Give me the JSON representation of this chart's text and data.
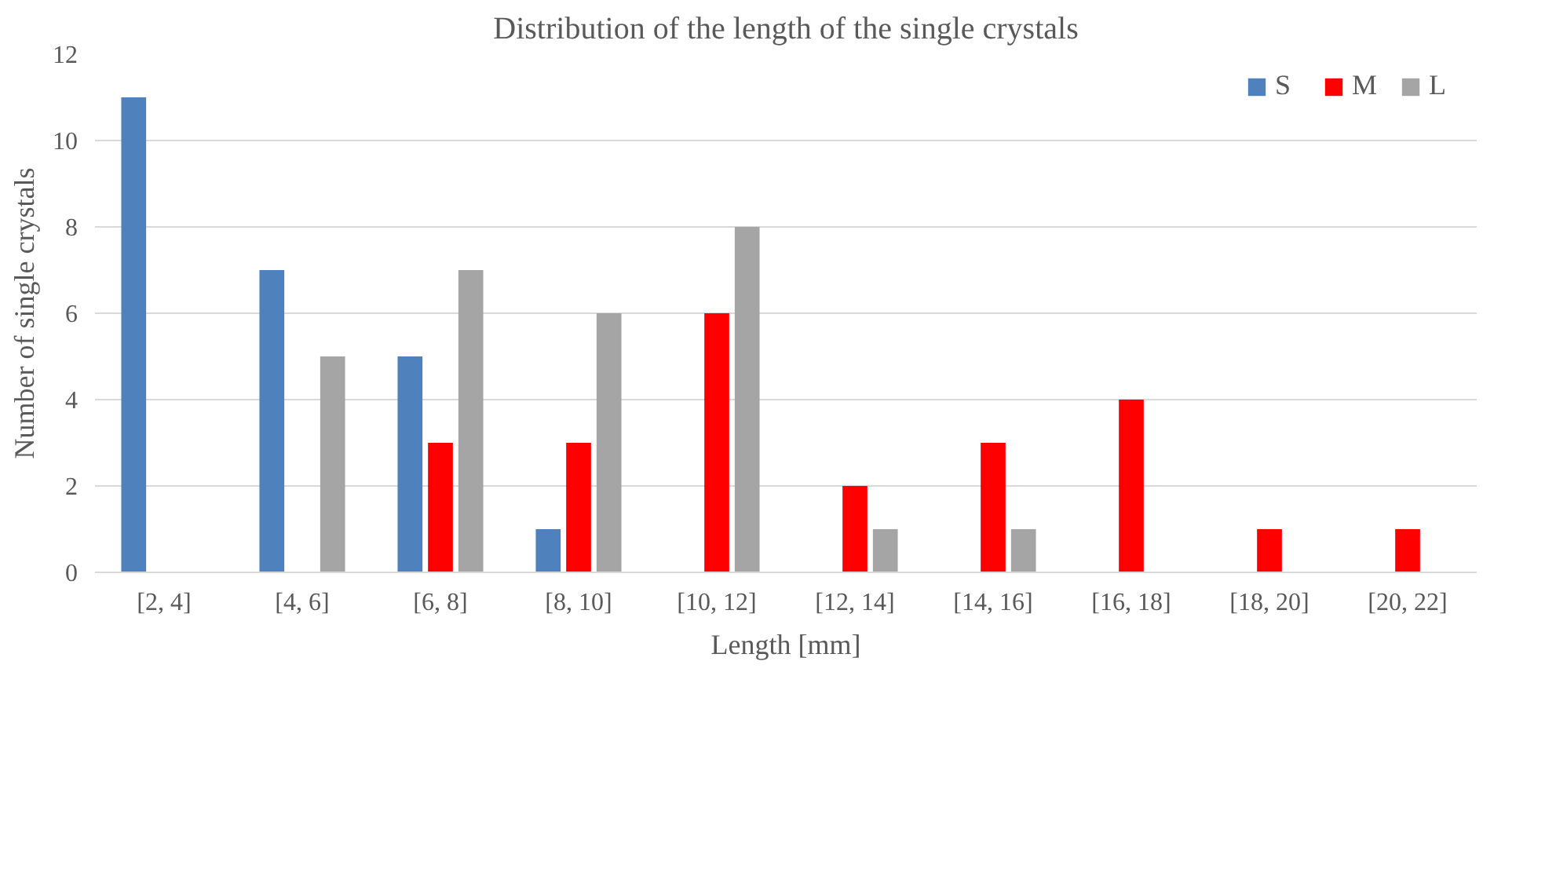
{
  "chart_data": {
    "type": "bar",
    "title": "Distribution of the length of the single crystals",
    "xlabel": "Length [mm]",
    "ylabel": "Number of single crystals",
    "categories": [
      "[2, 4]",
      "[4, 6]",
      "[6, 8]",
      "[8, 10]",
      "[10, 12]",
      "[12, 14]",
      "[14, 16]",
      "[16, 18]",
      "[18, 20]",
      "[20, 22]"
    ],
    "series": [
      {
        "name": "S",
        "color": "#4f81bd",
        "values": [
          11,
          7,
          5,
          1,
          0,
          0,
          0,
          0,
          0,
          0
        ]
      },
      {
        "name": "M",
        "color": "#ff0000",
        "values": [
          0,
          0,
          3,
          3,
          6,
          2,
          3,
          4,
          1,
          1
        ]
      },
      {
        "name": "L",
        "color": "#a5a5a5",
        "values": [
          0,
          5,
          7,
          6,
          8,
          1,
          1,
          0,
          0,
          0
        ]
      }
    ],
    "ylim": [
      0,
      12
    ],
    "yticks": [
      0,
      2,
      4,
      6,
      8,
      10,
      12
    ],
    "grid": "y",
    "legend": "top right"
  }
}
